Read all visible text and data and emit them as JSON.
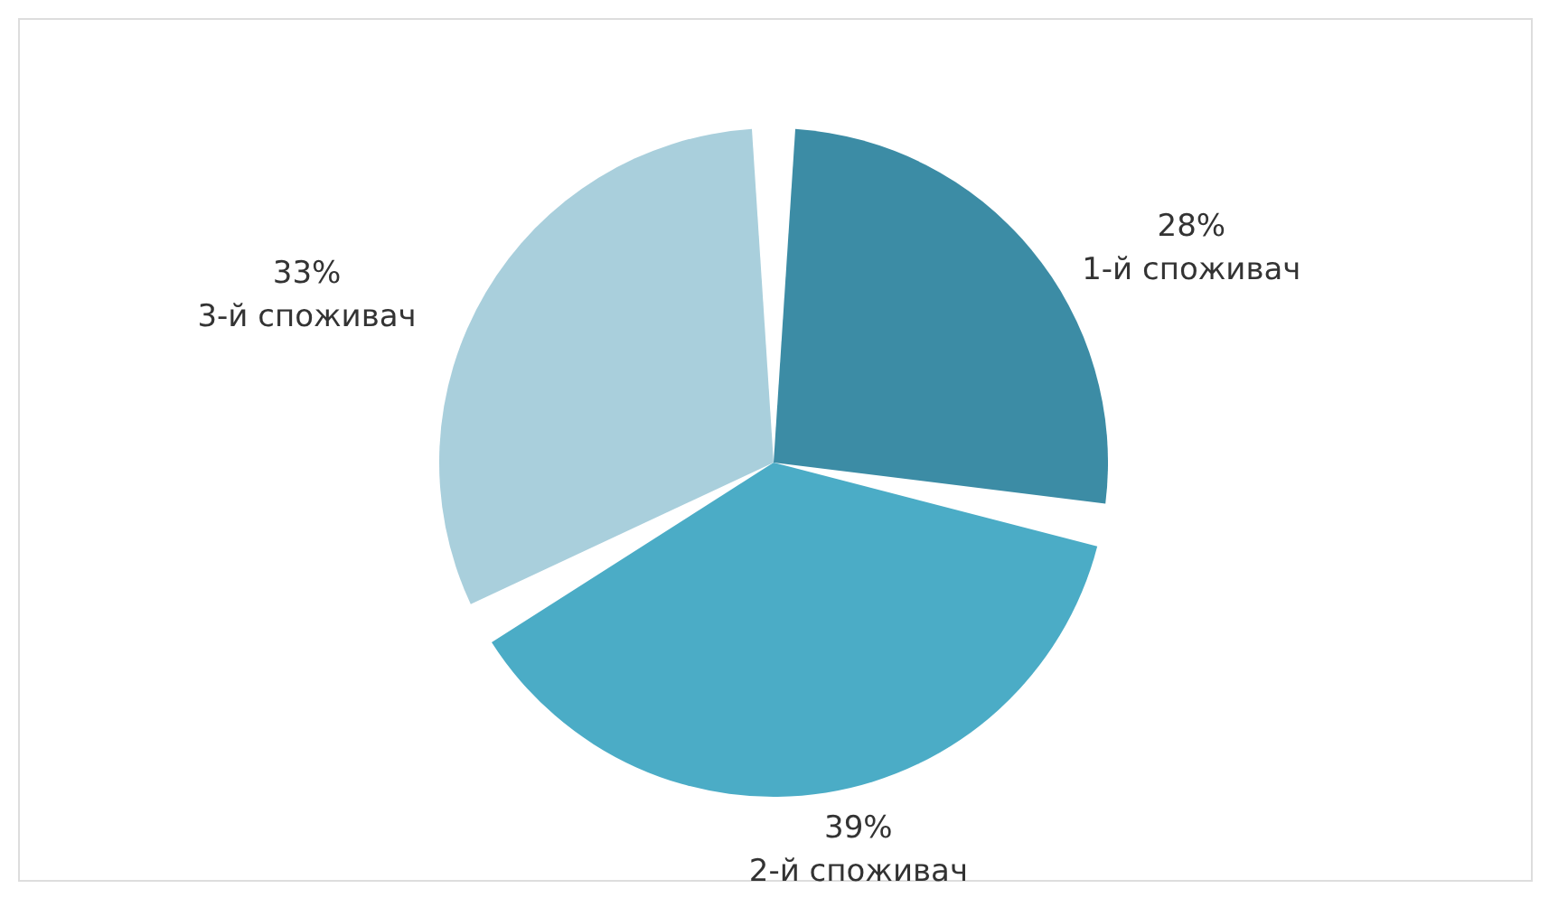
{
  "chart_data": {
    "type": "pie",
    "categories": [
      "1-й споживач",
      "2-й споживач",
      "3-й споживач"
    ],
    "values": [
      28,
      39,
      33
    ],
    "value_labels": [
      "28%",
      "39%",
      "33%"
    ],
    "colors": [
      "#3c8ca5",
      "#4bacc6",
      "#a9cfdc"
    ]
  }
}
